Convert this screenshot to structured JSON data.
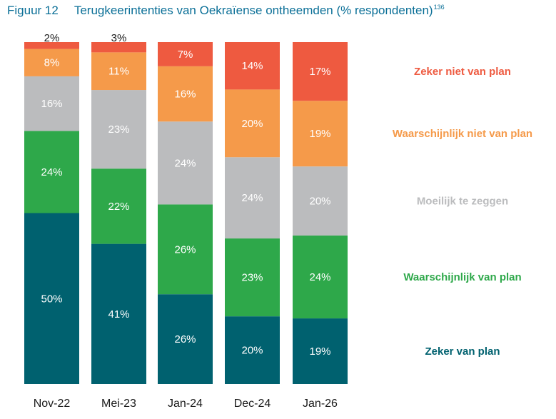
{
  "figure": {
    "label": "Figuur 12",
    "title": "Terugkeerintenties van Oekraïense ontheemden (% respondenten)",
    "footnote_ref": "136"
  },
  "chart_data": {
    "type": "bar",
    "stacked": true,
    "orientation": "vertical",
    "ylim": [
      0,
      100
    ],
    "grid": false,
    "legend_placement": "right, aligned with segments",
    "categories": [
      "Nov-22",
      "Mei-23",
      "Jan-24",
      "Dec-24",
      "Jan-26"
    ],
    "series": [
      {
        "name": "Zeker van plan",
        "color": "#00616f",
        "values": [
          50,
          41,
          26,
          20,
          19
        ]
      },
      {
        "name": "Waarschijnlijk van plan",
        "color": "#2ea84a",
        "values": [
          24,
          22,
          26,
          23,
          24
        ]
      },
      {
        "name": "Moeilijk te zeggen",
        "color": "#bbbcbe",
        "values": [
          16,
          23,
          24,
          24,
          20
        ]
      },
      {
        "name": "Waarschijnlijk niet van plan",
        "color": "#f59a4a",
        "values": [
          8,
          11,
          16,
          20,
          19
        ]
      },
      {
        "name": "Zeker niet van plan",
        "color": "#ee5a40",
        "values": [
          2,
          3,
          7,
          14,
          17
        ]
      }
    ],
    "value_labels": [
      [
        "50%",
        "41%",
        "26%",
        "20%",
        "19%"
      ],
      [
        "24%",
        "22%",
        "26%",
        "23%",
        "24%"
      ],
      [
        "16%",
        "23%",
        "24%",
        "24%",
        "20%"
      ],
      [
        "8%",
        "11%",
        "16%",
        "20%",
        "19%"
      ],
      [
        "2%",
        "3%",
        "7%",
        "14%",
        "17%"
      ]
    ]
  }
}
